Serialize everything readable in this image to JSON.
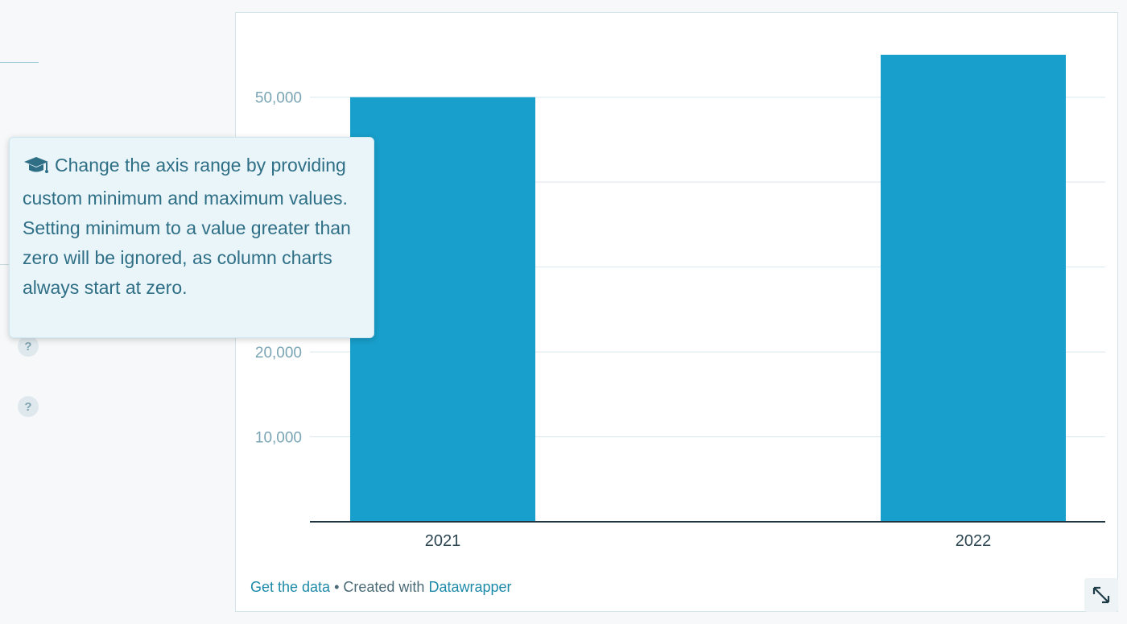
{
  "sidebar": {
    "help_buttons": [
      "?",
      "?"
    ]
  },
  "tooltip": {
    "icon": "graduation-cap-icon",
    "text": "Change the axis range by providing custom minimum and maximum values. Setting minimum to a value greater than zero will be ignored, as column charts always start at zero."
  },
  "chart_data": {
    "type": "bar",
    "categories": [
      "2021",
      "2022"
    ],
    "values": [
      50000,
      55000
    ],
    "y_ticks": [
      10000,
      20000,
      30000,
      40000,
      50000
    ],
    "y_tick_labels": [
      "10,000",
      "20,000",
      "",
      "",
      "50,000"
    ],
    "ylim": [
      0,
      55000
    ],
    "grid": true,
    "bar_color": "#189fcb"
  },
  "footer": {
    "get_data": "Get the data",
    "separator": " • ",
    "created_with": "Created with ",
    "brand": "Datawrapper"
  },
  "expand": {
    "icon": "expand-arrows-icon"
  }
}
